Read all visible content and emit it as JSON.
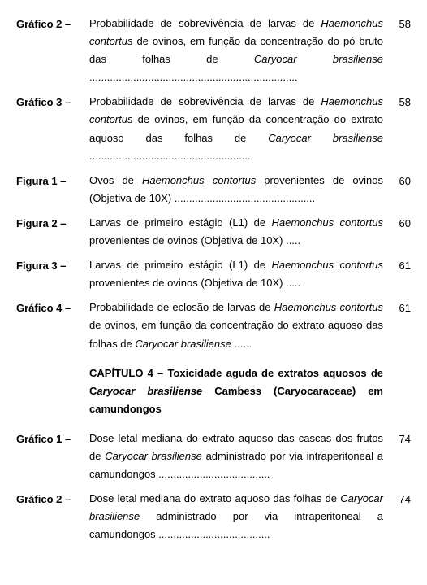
{
  "entries": [
    {
      "label": "Gráfico 2 –",
      "html": "Probabilidade de sobrevivência de larvas de <span class=\"italic\">Haemonchus contortus</span> de ovinos, em função da concentração do pó bruto das folhas de <span class=\"italic\">Caryocar brasiliense</span> .......................................................................",
      "page": "58"
    },
    {
      "label": "Gráfico 3 –",
      "html": "Probabilidade de sobrevivência de larvas de <span class=\"italic\">Haemonchus contortus</span> de ovinos, em função da concentração do extrato aquoso das folhas de <span class=\"italic\">Caryocar brasiliense</span> .......................................................",
      "page": "58"
    },
    {
      "label": "Figura 1 –",
      "html": "Ovos de <span class=\"italic\">Haemonchus contortus</span> provenientes de ovinos (Objetiva de 10X) ................................................",
      "page": "60"
    },
    {
      "label": "Figura 2 –",
      "html": "Larvas de primeiro estágio (L1) de <span class=\"italic\">Haemonchus contortus</span> provenientes de ovinos (Objetiva de 10X) .....",
      "page": "60"
    },
    {
      "label": "Figura 3 –",
      "html": "Larvas de primeiro estágio (L1) de <span class=\"italic\">Haemonchus contortus</span> provenientes de ovinos (Objetiva de 10X) .....",
      "page": "61"
    },
    {
      "label": "Gráfico 4 –",
      "html": "Probabilidade de eclosão de larvas de <span class=\"italic\">Haemonchus contortus</span> de ovinos, em função da concentração do extrato aquoso das folhas de <span class=\"italic\">Caryocar brasiliense</span> ......",
      "page": "61"
    }
  ],
  "chapter": {
    "html": "CAPÍTULO 4 – Toxicidade aguda de extratos aquosos de C<span class=\"italic\">aryocar brasiliense</span> Cambess (Caryocaraceae) em camundongos"
  },
  "entries2": [
    {
      "label": "Gráfico 1 –",
      "html": "Dose letal mediana do extrato aquoso das cascas dos frutos de <span class=\"italic\">Caryocar brasiliense</span> administrado por via intraperitoneal a camundongos ......................................",
      "page": "74"
    },
    {
      "label": "Gráfico 2 –",
      "html": "Dose letal mediana do extrato aquoso das folhas de <span class=\"italic\">Caryocar brasiliense</span> administrado por via intraperitoneal a camundongos ......................................",
      "page": "74"
    }
  ]
}
